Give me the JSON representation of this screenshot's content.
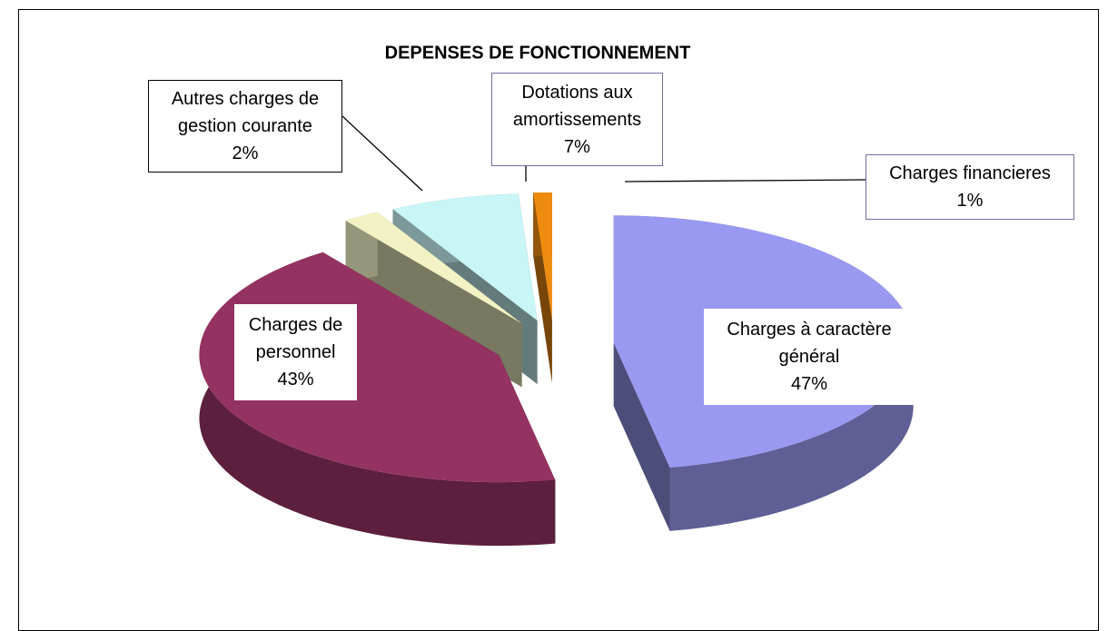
{
  "chart_data": {
    "type": "pie",
    "title": "DEPENSES DE FONCTIONNEMENT",
    "categories": [
      "Charges à caractère général",
      "Charges de personnel",
      "Autres charges de gestion courante",
      "Dotations aux amortissements",
      "Charges financieres"
    ],
    "values": [
      47,
      43,
      2,
      7,
      1
    ],
    "value_labels": [
      "47%",
      "43%",
      "2%",
      "7%",
      "1%"
    ],
    "colors": [
      "#9999f2",
      "#943262",
      "#f2f2c4",
      "#c8f5f5",
      "#ee8c10"
    ]
  }
}
